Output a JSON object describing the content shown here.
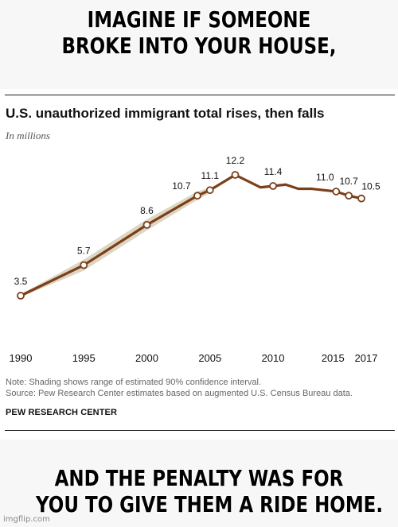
{
  "meme": {
    "top_text": "IMAGINE IF SOMEONE BROKE INTO YOUR HOUSE,",
    "top_line1": "IMAGINE IF SOMEONE",
    "top_line2": "BROKE INTO YOUR HOUSE,",
    "bottom_text": "AND THE PENALTY WAS FOR YOU TO GIVE THEM A RIDE HOME.",
    "bottom_line1": "AND THE PENALTY WAS FOR",
    "bottom_line2": "YOU TO GIVE THEM A RIDE HOME.",
    "watermark": "imgflip.com"
  },
  "chart_data": {
    "type": "line",
    "title": "U.S. unauthorized immigrant total rises, then falls",
    "subtitle": "In millions",
    "xlabel": "",
    "ylabel": "",
    "x_ticks": [
      1990,
      1995,
      2000,
      2005,
      2010,
      2015,
      2017
    ],
    "xlim": [
      1990,
      2017
    ],
    "ylim": [
      0,
      13
    ],
    "grid": false,
    "series": [
      {
        "color": "#7b3f1a",
        "points": [
          {
            "x": 1990,
            "y": 3.5
          },
          {
            "x": 1995,
            "y": 5.7
          },
          {
            "x": 2000,
            "y": 8.6
          },
          {
            "x": 2004,
            "y": 10.7
          },
          {
            "x": 2005,
            "y": 11.1
          },
          {
            "x": 2007,
            "y": 12.2
          },
          {
            "x": 2009,
            "y": 11.3
          },
          {
            "x": 2010,
            "y": 11.4
          },
          {
            "x": 2011,
            "y": 11.5
          },
          {
            "x": 2012,
            "y": 11.2
          },
          {
            "x": 2013,
            "y": 11.2
          },
          {
            "x": 2014,
            "y": 11.1
          },
          {
            "x": 2015,
            "y": 11.0
          },
          {
            "x": 2016,
            "y": 10.7
          },
          {
            "x": 2017,
            "y": 10.5
          }
        ],
        "marked_points": [
          {
            "x": 1990,
            "y": 3.5,
            "label": "3.5"
          },
          {
            "x": 1995,
            "y": 5.7,
            "label": "5.7"
          },
          {
            "x": 2000,
            "y": 8.6,
            "label": "8.6"
          },
          {
            "x": 2004,
            "y": 10.7,
            "label": "10.7"
          },
          {
            "x": 2005,
            "y": 11.1,
            "label": "11.1"
          },
          {
            "x": 2007,
            "y": 12.2,
            "label": "12.2"
          },
          {
            "x": 2010,
            "y": 11.4,
            "label": "11.4"
          },
          {
            "x": 2015,
            "y": 11.0,
            "label": "11.0"
          },
          {
            "x": 2016,
            "y": 10.7,
            "label": "10.7"
          },
          {
            "x": 2017,
            "y": 10.5,
            "label": "10.5"
          }
        ],
        "confidence_band": {
          "color": "#d9d2bd",
          "lower": [
            {
              "x": 1990,
              "y": 3.4
            },
            {
              "x": 1995,
              "y": 5.3
            },
            {
              "x": 2000,
              "y": 8.2
            },
            {
              "x": 2004,
              "y": 10.4
            },
            {
              "x": 2005,
              "y": 10.9
            }
          ],
          "upper": [
            {
              "x": 1990,
              "y": 3.6
            },
            {
              "x": 1995,
              "y": 6.1
            },
            {
              "x": 2000,
              "y": 9.0
            },
            {
              "x": 2004,
              "y": 11.0
            },
            {
              "x": 2005,
              "y": 11.3
            }
          ]
        }
      }
    ],
    "note": "Note: Shading shows range of estimated 90% confidence interval.",
    "source": "Source: Pew Research Center estimates based on augmented U.S. Census Bureau data.",
    "brand": "PEW RESEARCH CENTER"
  }
}
